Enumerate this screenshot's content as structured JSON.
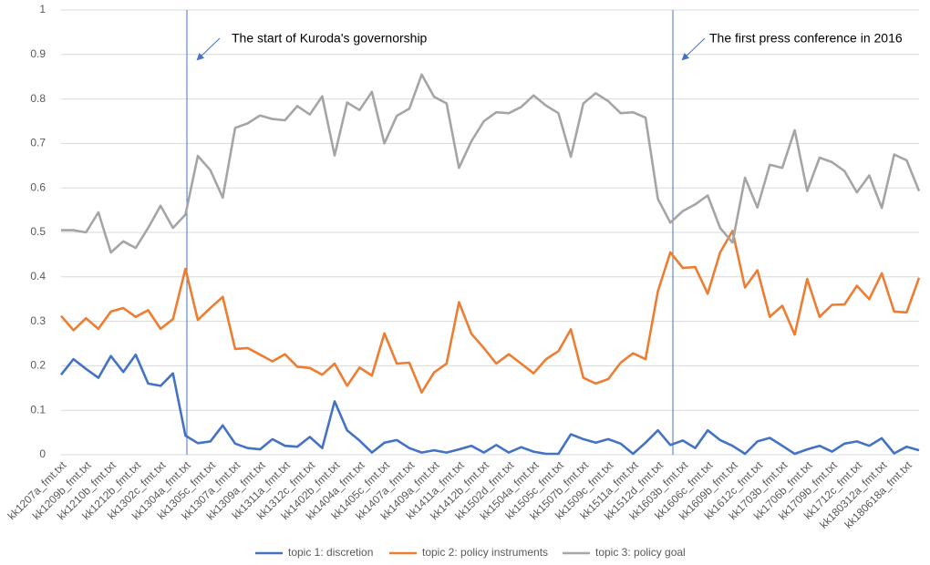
{
  "chart_data": {
    "type": "line",
    "annotations": [
      "The start of Kuroda's governorship",
      "The first press conference in 2016"
    ],
    "categories": [
      "kk1207a_fmt.txt",
      null,
      "kk1209b_fmt.txt",
      null,
      "kk1210b_fmt.txt",
      null,
      "kk1212b_fmt.txt",
      null,
      "kk1302c_fmt.txt",
      null,
      "kk1304a_fmt.txt",
      null,
      "kk1305c_fmt.txt",
      null,
      "kk1307a_fmt.txt",
      null,
      "kk1309a_fmt.txt",
      null,
      "kk1311a_fmt.txt",
      null,
      "kk1312c_fmt.txt",
      null,
      "kk1402b_fmt.txt",
      null,
      "kk1404a_fmt.txt",
      null,
      "kk1405c_fmt.txt",
      null,
      "kk1407a_fmt.txt",
      null,
      "kk1409a_fmt.txt",
      null,
      "kk1411a_fmt.txt",
      null,
      "kk1412b_fmt.txt",
      null,
      "kk1502d_fmt.txt",
      null,
      "kk1504a_fmt.txt",
      null,
      "kk1505c_fmt.txt",
      null,
      "kk1507b_fmt.txt",
      null,
      "kk1509c_fmt.txt",
      null,
      "kk1511a_fmt.txt",
      null,
      "kk1512d_fmt.txt",
      null,
      "kk1603b_fmt.txt",
      null,
      "kk1606c_fmt.txt",
      null,
      "kk1609b_fmt.txt",
      null,
      "kk1612c_fmt.txt",
      null,
      "kk1703b_fmt.txt",
      null,
      "kk1706b_fmt.txt",
      null,
      "kk1709b_fmt.txt",
      null,
      "kk1712c_fmt.txt",
      null,
      "kk180312a_fmt.txt",
      null,
      "kk180618a_fmt.txt",
      null
    ],
    "series": [
      {
        "name": "topic 1: discretion",
        "color": "#4472c4",
        "values": [
          0.18,
          0.215,
          0.193,
          0.173,
          0.222,
          0.186,
          0.225,
          0.16,
          0.155,
          0.183,
          0.043,
          0.026,
          0.03,
          0.066,
          0.025,
          0.015,
          0.012,
          0.035,
          0.02,
          0.018,
          0.04,
          0.015,
          0.12,
          0.055,
          0.032,
          0.005,
          0.027,
          0.033,
          0.015,
          0.005,
          0.01,
          0.005,
          0.012,
          0.02,
          0.005,
          0.022,
          0.005,
          0.017,
          0.007,
          0.002,
          0.002,
          0.046,
          0.035,
          0.027,
          0.035,
          0.025,
          0.002,
          0.027,
          0.055,
          0.022,
          0.032,
          0.015,
          0.055,
          0.033,
          0.02,
          0.002,
          0.03,
          0.038,
          0.02,
          0.002,
          0.012,
          0.02,
          0.007,
          0.025,
          0.03,
          0.02,
          0.037,
          0.003,
          0.018,
          0.01
        ]
      },
      {
        "name": "topic 2: policy instruments",
        "color": "#ed7d31",
        "values": [
          0.312,
          0.28,
          0.307,
          0.283,
          0.322,
          0.33,
          0.31,
          0.325,
          0.283,
          0.305,
          0.418,
          0.303,
          0.33,
          0.355,
          0.238,
          0.24,
          0.225,
          0.21,
          0.226,
          0.198,
          0.195,
          0.18,
          0.205,
          0.155,
          0.196,
          0.178,
          0.273,
          0.205,
          0.207,
          0.14,
          0.185,
          0.205,
          0.343,
          0.272,
          0.24,
          0.205,
          0.226,
          0.205,
          0.183,
          0.215,
          0.233,
          0.282,
          0.173,
          0.16,
          0.17,
          0.207,
          0.228,
          0.215,
          0.368,
          0.455,
          0.42,
          0.422,
          0.362,
          0.455,
          0.503,
          0.376,
          0.415,
          0.31,
          0.335,
          0.27,
          0.395,
          0.31,
          0.337,
          0.338,
          0.38,
          0.35,
          0.408,
          0.322,
          0.32,
          0.398
        ]
      },
      {
        "name": "topic 3: policy goal",
        "color": "#a5a5a5",
        "values": [
          0.505,
          0.505,
          0.5,
          0.545,
          0.455,
          0.48,
          0.465,
          0.51,
          0.56,
          0.51,
          0.54,
          0.672,
          0.64,
          0.578,
          0.735,
          0.745,
          0.763,
          0.755,
          0.752,
          0.784,
          0.765,
          0.806,
          0.673,
          0.792,
          0.775,
          0.816,
          0.7,
          0.762,
          0.778,
          0.855,
          0.805,
          0.79,
          0.645,
          0.705,
          0.75,
          0.77,
          0.768,
          0.782,
          0.808,
          0.785,
          0.768,
          0.67,
          0.79,
          0.813,
          0.795,
          0.768,
          0.77,
          0.758,
          0.575,
          0.522,
          0.548,
          0.563,
          0.583,
          0.51,
          0.477,
          0.623,
          0.556,
          0.652,
          0.645,
          0.73,
          0.593,
          0.668,
          0.658,
          0.638,
          0.59,
          0.628,
          0.555,
          0.675,
          0.662,
          0.593
        ]
      }
    ],
    "ylim": [
      0,
      1
    ],
    "yticks": [
      0,
      0.1,
      0.2,
      0.3,
      0.4,
      0.5,
      0.6,
      0.7,
      0.8,
      0.9,
      1
    ],
    "grid": true,
    "legend": "bottom"
  }
}
